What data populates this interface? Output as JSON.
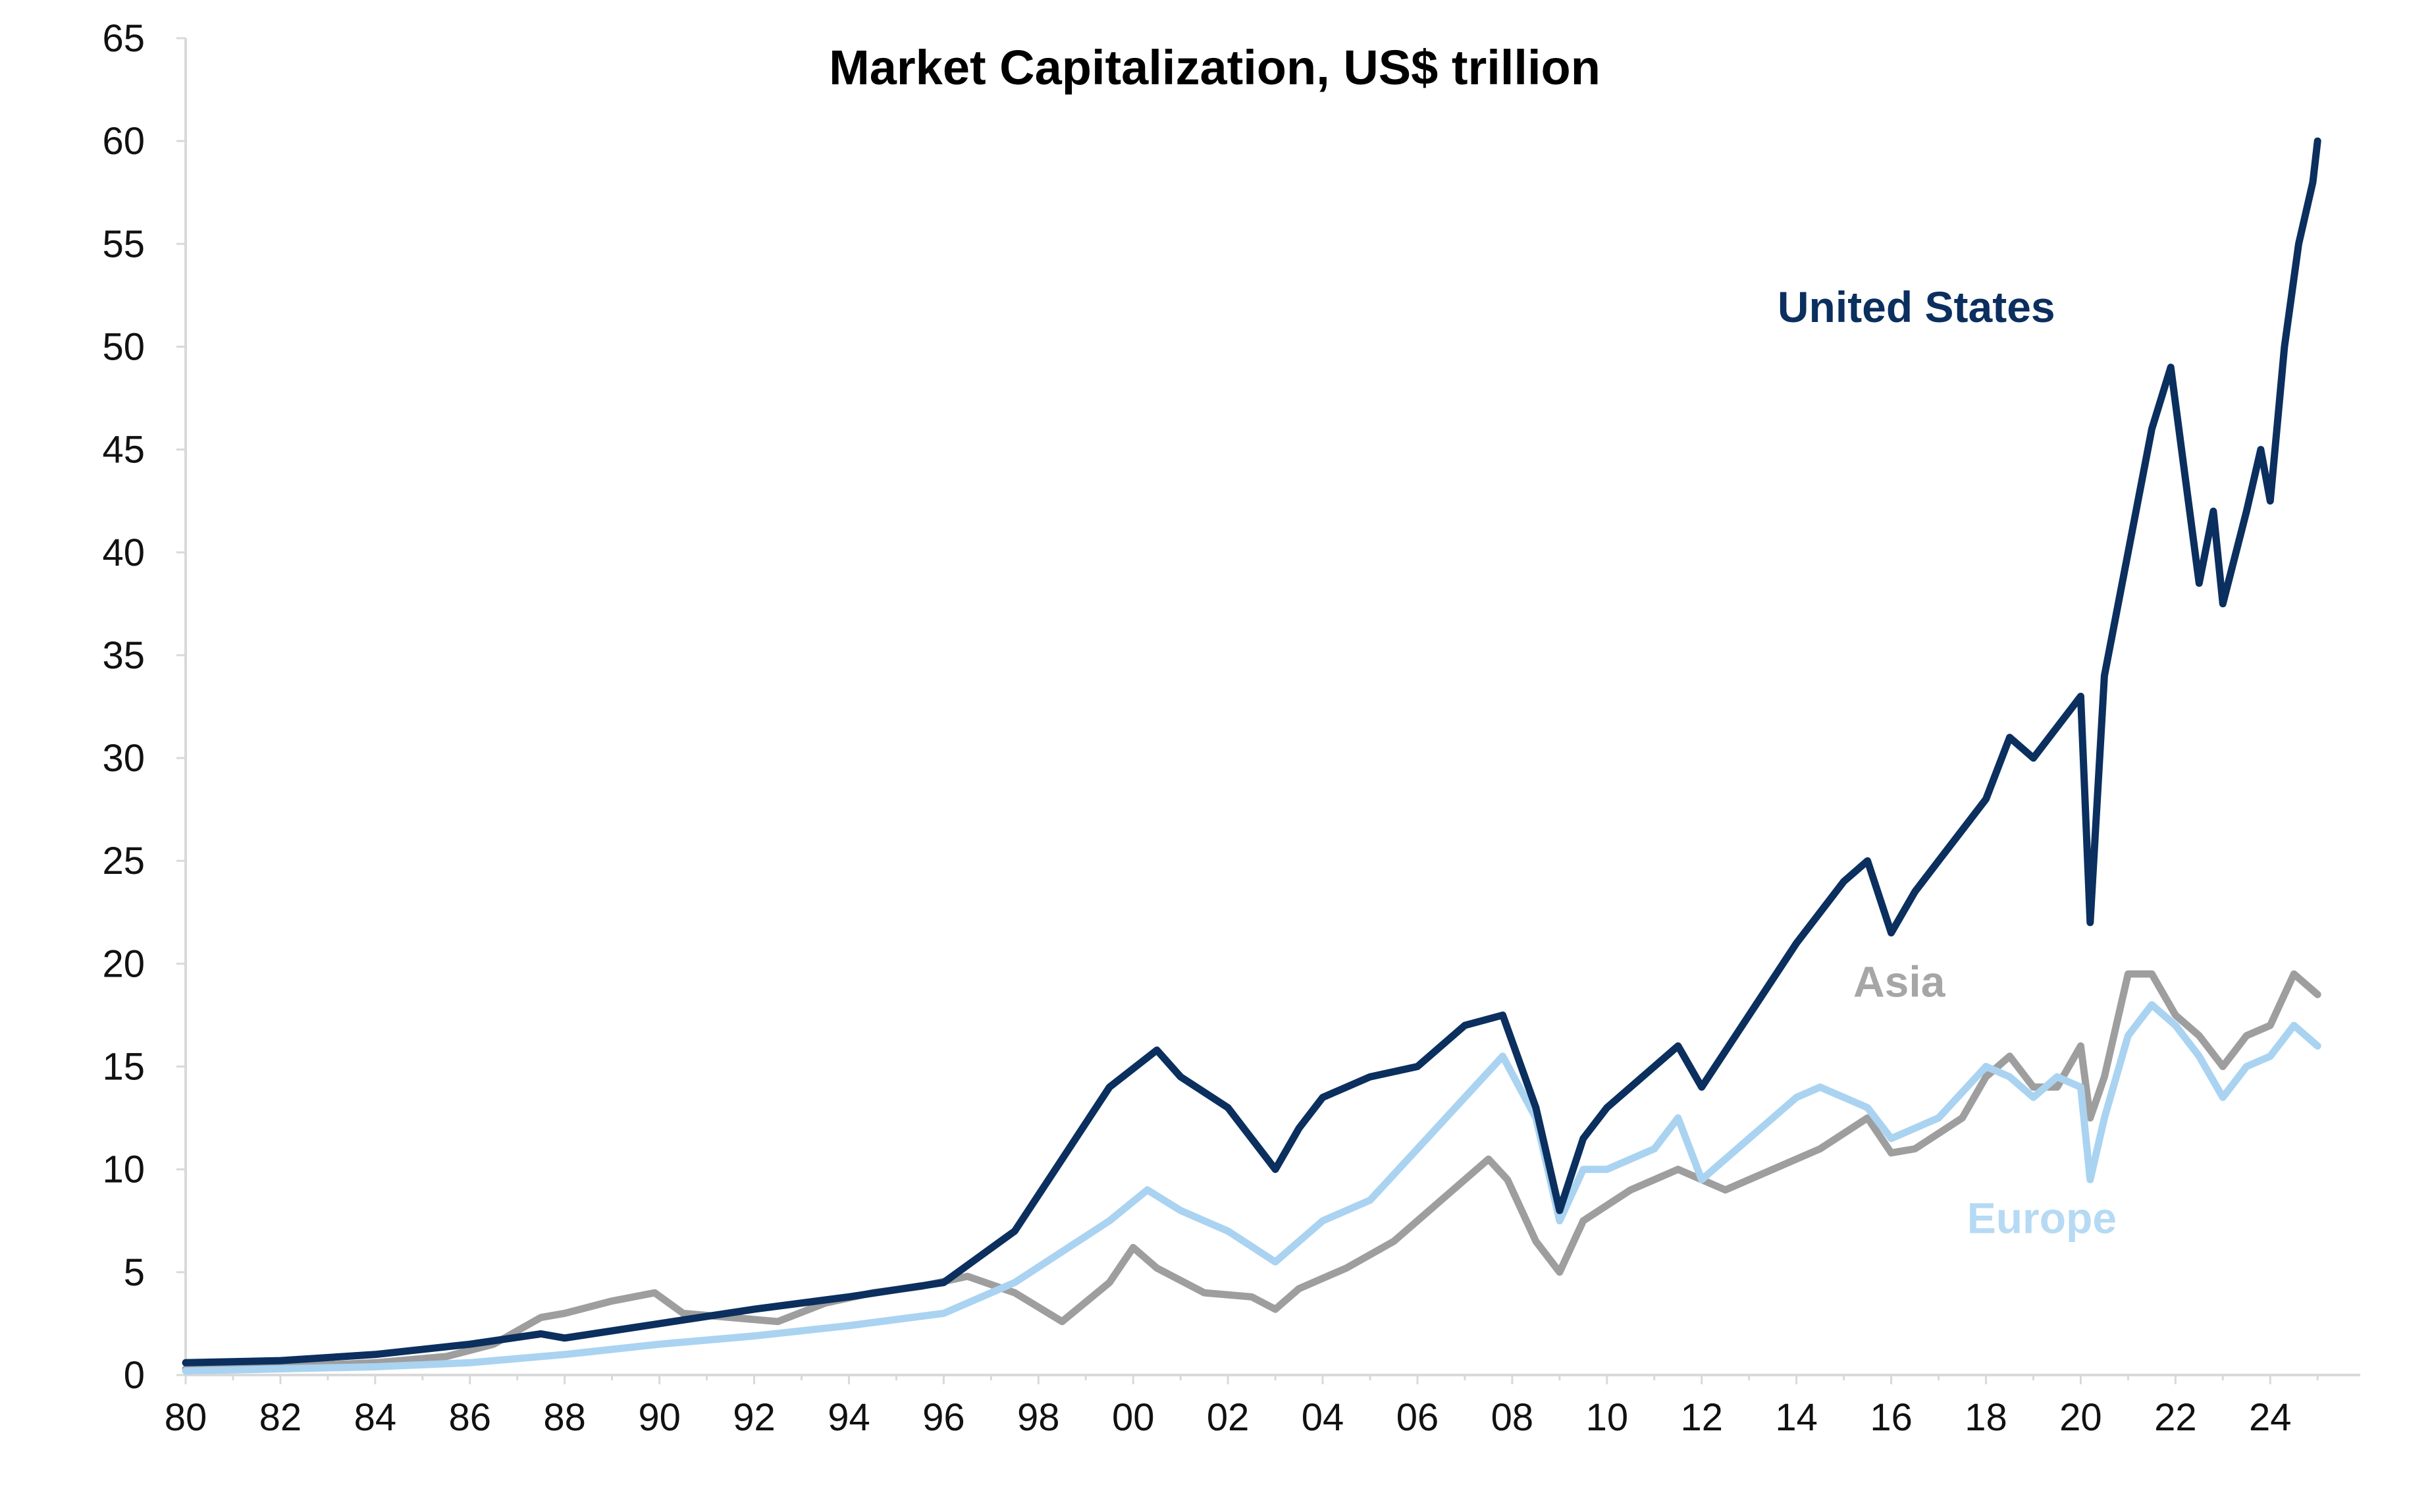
{
  "chart_data": {
    "type": "line",
    "title": "Market Capitalization, US$ trillion",
    "xlabel": "",
    "ylabel": "",
    "xlim": [
      1980,
      2025.9
    ],
    "ylim": [
      0,
      65
    ],
    "grid": false,
    "legend": "none",
    "x_ticks": [
      1980,
      1982,
      1984,
      1986,
      1988,
      1990,
      1992,
      1994,
      1996,
      1998,
      2000,
      2002,
      2004,
      2006,
      2008,
      2010,
      2012,
      2014,
      2016,
      2018,
      2020,
      2022,
      2024
    ],
    "x_tick_labels": [
      "80",
      "82",
      "84",
      "86",
      "88",
      "90",
      "92",
      "94",
      "96",
      "98",
      "00",
      "02",
      "04",
      "06",
      "08",
      "10",
      "12",
      "14",
      "16",
      "18",
      "20",
      "22",
      "24"
    ],
    "y_ticks": [
      0,
      5,
      10,
      15,
      20,
      25,
      30,
      35,
      40,
      45,
      50,
      55,
      60,
      65
    ],
    "y_tick_labels": [
      "0",
      "5",
      "10",
      "15",
      "20",
      "25",
      "30",
      "35",
      "40",
      "45",
      "50",
      "55",
      "60",
      "65"
    ],
    "series": [
      {
        "name": "Asia",
        "color": "#9e9e9e",
        "x": [
          1980,
          1982,
          1984,
          1985.5,
          1986.5,
          1987.5,
          1988,
          1989,
          1989.9,
          1990.5,
          1991.5,
          1992.5,
          1993.5,
          1994.5,
          1995.5,
          1996.5,
          1997.5,
          1998.5,
          1999.5,
          2000.0,
          2000.5,
          2001.5,
          2002.5,
          2003.0,
          2003.5,
          2004.5,
          2005.5,
          2006.5,
          2007.5,
          2007.9,
          2008.5,
          2009.0,
          2009.5,
          2010.5,
          2011.5,
          2012.0,
          2012.5,
          2013.5,
          2014.5,
          2015.5,
          2016.0,
          2016.5,
          2017.5,
          2018.0,
          2018.5,
          2019.0,
          2019.5,
          2020.0,
          2020.2,
          2020.5,
          2021.0,
          2021.5,
          2022.0,
          2022.5,
          2023.0,
          2023.5,
          2024.0,
          2024.5,
          2025.0
        ],
        "values": [
          0.3,
          0.4,
          0.6,
          0.9,
          1.5,
          2.8,
          3.0,
          3.6,
          4.0,
          3.0,
          2.8,
          2.6,
          3.5,
          4.0,
          4.3,
          4.8,
          4.0,
          2.6,
          4.5,
          6.2,
          5.2,
          4.0,
          3.8,
          3.2,
          4.2,
          5.2,
          6.5,
          8.5,
          10.5,
          9.5,
          6.5,
          5.0,
          7.5,
          9.0,
          10.0,
          9.5,
          9.0,
          10.0,
          11.0,
          12.5,
          10.8,
          11.0,
          12.5,
          14.5,
          15.5,
          14.0,
          14.0,
          16.0,
          12.5,
          14.5,
          19.5,
          19.5,
          17.5,
          16.5,
          15.0,
          16.5,
          17.0,
          19.5,
          18.5
        ]
      },
      {
        "name": "Europe",
        "color": "#a9d3f1",
        "x": [
          1980,
          1982,
          1984,
          1986,
          1988,
          1990,
          1992,
          1994,
          1996,
          1997.5,
          1998.5,
          1999.5,
          2000.3,
          2001.0,
          2002.0,
          2003.0,
          2004.0,
          2005.0,
          2006.0,
          2007.0,
          2007.8,
          2008.5,
          2009.0,
          2009.5,
          2010.0,
          2011.0,
          2011.5,
          2012.0,
          2013.0,
          2014.0,
          2014.5,
          2015.5,
          2016.0,
          2017.0,
          2018.0,
          2018.5,
          2019.0,
          2019.5,
          2020.0,
          2020.2,
          2020.5,
          2021.0,
          2021.5,
          2022.0,
          2022.5,
          2023.0,
          2023.5,
          2024.0,
          2024.5,
          2025.0
        ],
        "values": [
          0.2,
          0.3,
          0.4,
          0.6,
          1.0,
          1.5,
          1.9,
          2.4,
          3.0,
          4.5,
          6.0,
          7.5,
          9.0,
          8.0,
          7.0,
          5.5,
          7.5,
          8.5,
          11.0,
          13.5,
          15.5,
          12.5,
          7.5,
          10.0,
          10.0,
          11.0,
          12.5,
          9.5,
          11.5,
          13.5,
          14.0,
          13.0,
          11.5,
          12.5,
          15.0,
          14.5,
          13.5,
          14.5,
          14.0,
          9.5,
          12.5,
          16.5,
          18.0,
          17.0,
          15.5,
          13.5,
          15.0,
          15.5,
          17.0,
          16.0
        ]
      },
      {
        "name": "United States",
        "color": "#0b2f5e",
        "x": [
          1980,
          1982,
          1984,
          1986,
          1987.5,
          1988,
          1990,
          1992,
          1994,
          1996,
          1997.5,
          1998.5,
          1999.5,
          2000.5,
          2001.0,
          2002.0,
          2003.0,
          2003.5,
          2004.0,
          2005.0,
          2006.0,
          2007.0,
          2007.8,
          2008.5,
          2009.0,
          2009.5,
          2010.0,
          2011.0,
          2011.5,
          2012.0,
          2013.0,
          2014.0,
          2015.0,
          2015.5,
          2016.0,
          2016.5,
          2017.0,
          2018.0,
          2018.5,
          2019.0,
          2019.5,
          2020.0,
          2020.2,
          2020.5,
          2021.0,
          2021.5,
          2021.9,
          2022.5,
          2022.8,
          2023.0,
          2023.5,
          2023.8,
          2024.0,
          2024.3,
          2024.6,
          2024.9,
          2025.0
        ],
        "values": [
          0.6,
          0.7,
          1.0,
          1.5,
          2.0,
          1.8,
          2.5,
          3.2,
          3.8,
          4.5,
          7.0,
          10.5,
          14.0,
          15.8,
          14.5,
          13.0,
          10.0,
          12.0,
          13.5,
          14.5,
          15.0,
          17.0,
          17.5,
          13.0,
          8.0,
          11.5,
          13.0,
          15.0,
          16.0,
          14.0,
          17.5,
          21.0,
          24.0,
          25.0,
          21.5,
          23.5,
          25.0,
          28.0,
          31.0,
          30.0,
          31.5,
          33.0,
          22.0,
          34.0,
          40.0,
          46.0,
          49.0,
          38.5,
          42.0,
          37.5,
          42.0,
          45.0,
          42.5,
          50.0,
          55.0,
          58.0,
          60.0
        ]
      }
    ],
    "annotations": [
      {
        "text": "United States",
        "x": 2013.6,
        "y": 51.2,
        "color": "#0b2f5e"
      },
      {
        "text": "Asia",
        "x": 2015.2,
        "y": 18.4,
        "color": "#a6a6a6"
      },
      {
        "text": "Europe",
        "x": 2017.6,
        "y": 6.9,
        "color": "#b6daf4"
      }
    ]
  }
}
